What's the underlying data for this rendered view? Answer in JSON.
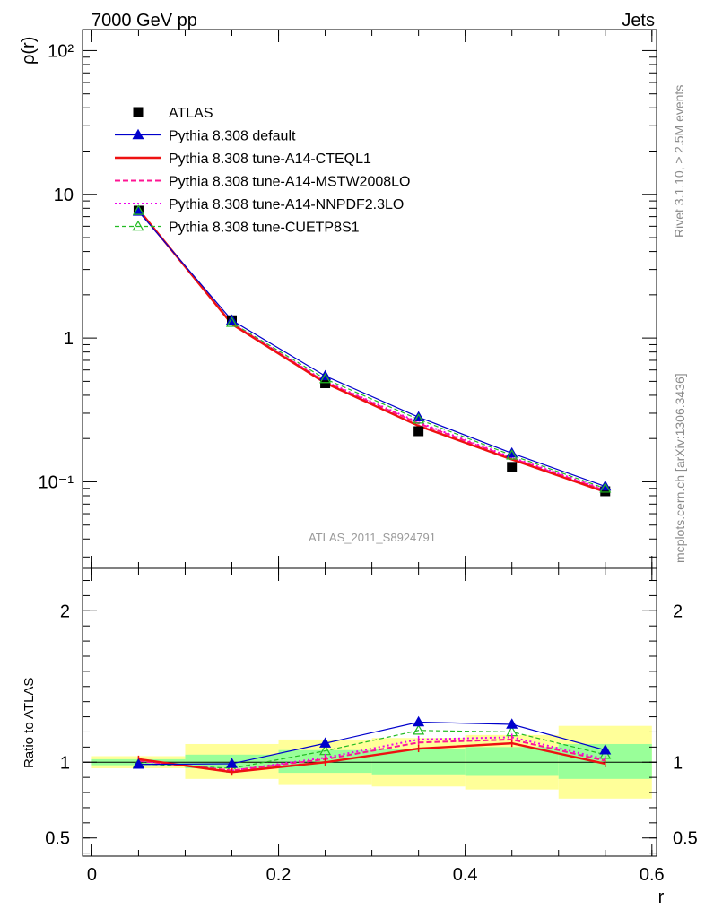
{
  "header": {
    "left": "7000 GeV pp",
    "right": "Jets"
  },
  "side_labels": {
    "rivet": "Rivet 3.1.10, ≥ 2.5M events",
    "mcplots": "mcplots.cern.ch [arXiv:1306.3436]"
  },
  "analysis_label": "ATLAS_2011_S8924791",
  "legend": [
    {
      "label": "ATLAS",
      "color": "#000000",
      "marker": "square"
    },
    {
      "label": "Pythia 8.308 default",
      "color": "#0000cc",
      "marker": "triangle"
    },
    {
      "label": "Pythia 8.308 tune-A14-CTEQL1",
      "color": "#ee1111",
      "marker": "none"
    },
    {
      "label": "Pythia 8.308 tune-A14-MSTW2008LO",
      "color": "#ff1493",
      "marker": "none"
    },
    {
      "label": "Pythia 8.308 tune-A14-NNPDF2.3LO",
      "color": "#ee00ee",
      "marker": "none"
    },
    {
      "label": "Pythia 8.308 tune-CUETP8S1",
      "color": "#22bb22",
      "marker": "open-triangle"
    }
  ],
  "chart_data": [
    {
      "type": "line",
      "scale_y": "log",
      "ylabel": "ρ(r)",
      "xlim": [
        -0.01,
        0.605
      ],
      "ylim": [
        0.025,
        140
      ],
      "ytick_labels": [
        "10⁻¹",
        "1",
        "10",
        "10²"
      ],
      "x": [
        0.05,
        0.15,
        0.25,
        0.35,
        0.45,
        0.55
      ],
      "series": [
        {
          "name": "ATLAS",
          "values": [
            7.7,
            1.33,
            0.485,
            0.225,
            0.127,
            0.086
          ]
        },
        {
          "name": "Pythia 8.308 default",
          "values": [
            7.6,
            1.33,
            0.545,
            0.282,
            0.158,
            0.093
          ]
        },
        {
          "name": "Pythia 8.308 tune-A14-CTEQL1",
          "values": [
            7.85,
            1.25,
            0.487,
            0.245,
            0.143,
            0.085
          ]
        },
        {
          "name": "Pythia 8.308 tune-A14-MSTW2008LO",
          "values": [
            7.8,
            1.26,
            0.495,
            0.255,
            0.146,
            0.087
          ]
        },
        {
          "name": "Pythia 8.308 tune-A14-NNPDF2.3LO",
          "values": [
            7.8,
            1.26,
            0.5,
            0.259,
            0.148,
            0.088
          ]
        },
        {
          "name": "Pythia 8.308 tune-CUETP8S1",
          "values": [
            7.7,
            1.28,
            0.52,
            0.272,
            0.153,
            0.09
          ]
        }
      ]
    },
    {
      "type": "line",
      "ylabel": "Ratio to ATLAS",
      "xlabel": "r",
      "xlim": [
        -0.01,
        0.605
      ],
      "ylim": [
        0.38,
        2.28
      ],
      "yticks": [
        0.5,
        1,
        2
      ],
      "ytick_labels": [
        "0.5",
        "1",
        "2"
      ],
      "xticks": [
        0,
        0.2,
        0.4,
        0.6
      ],
      "xtick_labels": [
        "0",
        "0.2",
        "0.4",
        "0.6"
      ],
      "bands": [
        {
          "x0": 0.0,
          "x1": 0.1,
          "inner": [
            0.98,
            1.02
          ],
          "outer": [
            0.96,
            1.04
          ]
        },
        {
          "x0": 0.1,
          "x1": 0.2,
          "inner": [
            0.96,
            1.05
          ],
          "outer": [
            0.89,
            1.12
          ]
        },
        {
          "x0": 0.2,
          "x1": 0.3,
          "inner": [
            0.93,
            1.08
          ],
          "outer": [
            0.85,
            1.15
          ]
        },
        {
          "x0": 0.3,
          "x1": 0.4,
          "inner": [
            0.92,
            1.09
          ],
          "outer": [
            0.84,
            1.16
          ]
        },
        {
          "x0": 0.4,
          "x1": 0.5,
          "inner": [
            0.91,
            1.1
          ],
          "outer": [
            0.82,
            1.18
          ]
        },
        {
          "x0": 0.5,
          "x1": 0.6,
          "inner": [
            0.89,
            1.12
          ],
          "outer": [
            0.76,
            1.24
          ]
        }
      ],
      "x": [
        0.05,
        0.15,
        0.25,
        0.35,
        0.45,
        0.55
      ],
      "series": [
        {
          "name": "Pythia 8.308 default",
          "values": [
            0.985,
            0.99,
            1.125,
            1.265,
            1.25,
            1.08
          ]
        },
        {
          "name": "Pythia 8.308 tune-A14-CTEQL1",
          "values": [
            1.02,
            0.935,
            1.0,
            1.09,
            1.125,
            0.99
          ]
        },
        {
          "name": "Pythia 8.308 tune-A14-MSTW2008LO",
          "values": [
            1.01,
            0.945,
            1.02,
            1.13,
            1.15,
            1.01
          ]
        },
        {
          "name": "Pythia 8.308 tune-A14-NNPDF2.3LO",
          "values": [
            1.01,
            0.945,
            1.03,
            1.15,
            1.165,
            1.02
          ]
        },
        {
          "name": "Pythia 8.308 tune-CUETP8S1",
          "values": [
            0.99,
            0.96,
            1.075,
            1.21,
            1.2,
            1.05
          ]
        }
      ]
    }
  ]
}
